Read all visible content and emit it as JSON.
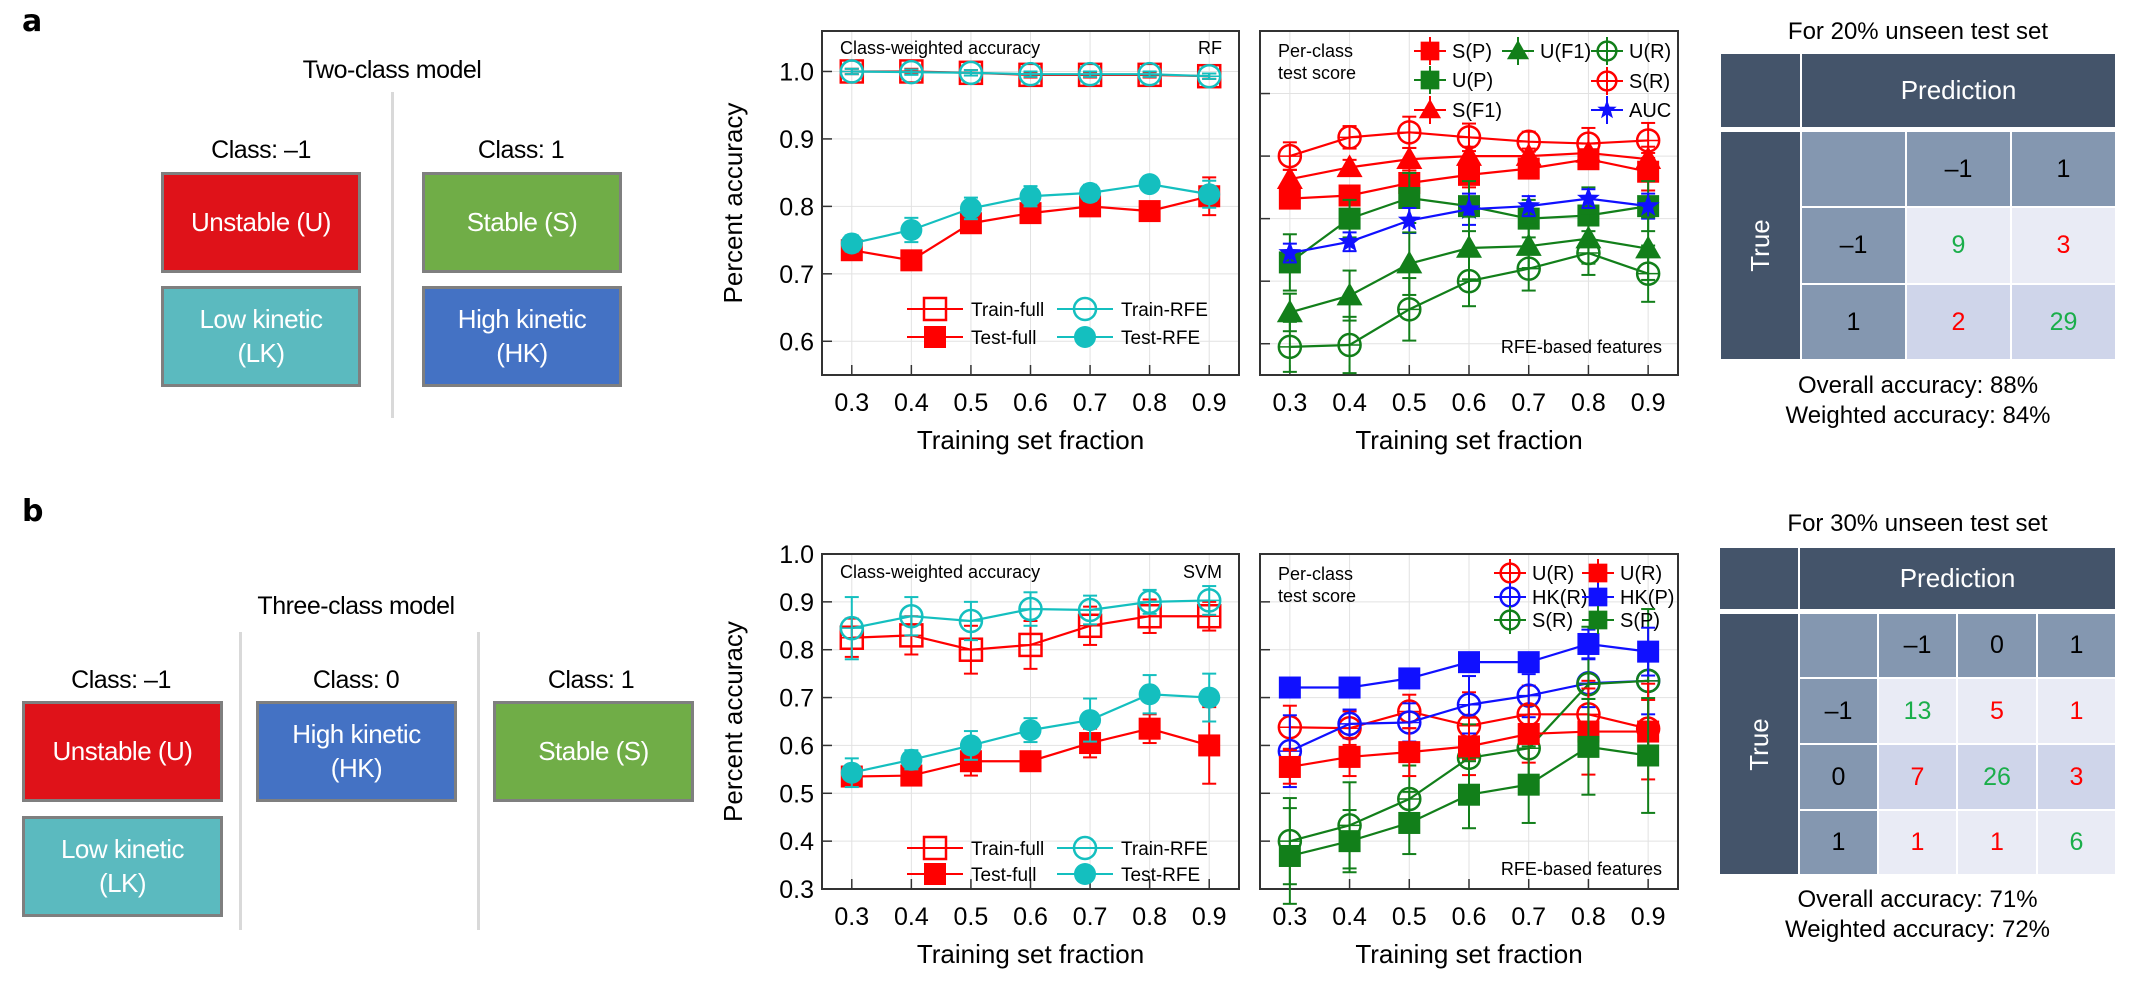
{
  "panel_a": {
    "letter": "a",
    "model_title": "Two-class model",
    "classes": [
      {
        "label": "Class: –1",
        "boxes": [
          {
            "text": "Unstable (U)",
            "color": "#df1219"
          },
          {
            "text": "Low kinetic (LK)",
            "color": "#5bbabf"
          }
        ]
      },
      {
        "label": "Class: 1",
        "boxes": [
          {
            "text": "Stable (S)",
            "color": "#70ad47"
          },
          {
            "text": "High kinetic (HK)",
            "color": "#4472c4"
          }
        ]
      }
    ],
    "confusion": {
      "title": "For 20% unseen test set",
      "prediction_label": "Prediction",
      "true_label": "True",
      "labels": [
        "–1",
        "1"
      ],
      "matrix": [
        [
          9,
          3
        ],
        [
          2,
          29
        ]
      ],
      "overall": "Overall accuracy: 88%",
      "weighted": "Weighted accuracy: 84%"
    }
  },
  "panel_b": {
    "letter": "b",
    "model_title": "Three-class model",
    "classes": [
      {
        "label": "Class: –1",
        "boxes": [
          {
            "text": "Unstable (U)",
            "color": "#df1219"
          },
          {
            "text": "Low kinetic (LK)",
            "color": "#5bbabf"
          }
        ]
      },
      {
        "label": "Class: 0",
        "boxes": [
          {
            "text": "High kinetic (HK)",
            "color": "#4472c4"
          }
        ]
      },
      {
        "label": "Class: 1",
        "boxes": [
          {
            "text": "Stable (S)",
            "color": "#70ad47"
          }
        ]
      }
    ],
    "confusion": {
      "title": "For 30% unseen test set",
      "prediction_label": "Prediction",
      "true_label": "True",
      "labels": [
        "–1",
        "0",
        "1"
      ],
      "matrix": [
        [
          13,
          5,
          1
        ],
        [
          7,
          26,
          3
        ],
        [
          1,
          1,
          6
        ]
      ],
      "overall": "Overall accuracy: 71%",
      "weighted": "Weighted accuracy: 72%"
    }
  },
  "colors": {
    "correct": "#1aae4a",
    "wrong": "#ff0000"
  },
  "chart_data": [
    {
      "type": "line",
      "annotation": "Class-weighted accuracy",
      "model": "RF",
      "xlabel": "Training set fraction",
      "ylabel": "Percent accuracy",
      "x": [
        0.3,
        0.4,
        0.5,
        0.6,
        0.7,
        0.8,
        0.9
      ],
      "xlim": [
        0.25,
        0.95
      ],
      "ylim": [
        0.55,
        1.06
      ],
      "yticks": [
        0.6,
        0.7,
        0.8,
        0.9,
        1.0
      ],
      "grid": true,
      "legend": "bottom",
      "series": [
        {
          "name": "Train-full",
          "marker": "open-square",
          "color": "#ff0000",
          "values": [
            1.0,
            1.0,
            0.998,
            0.995,
            0.995,
            0.995,
            0.993
          ],
          "err": [
            0.004,
            0.004,
            0.004,
            0.004,
            0.004,
            0.004,
            0.004
          ]
        },
        {
          "name": "Train-RFE",
          "marker": "open-circle",
          "color": "#14bfbf",
          "values": [
            1.0,
            0.999,
            0.998,
            0.996,
            0.996,
            0.996,
            0.993
          ],
          "err": [
            0.004,
            0.004,
            0.004,
            0.004,
            0.004,
            0.004,
            0.004
          ]
        },
        {
          "name": "Test-full",
          "marker": "filled-square",
          "color": "#ff0000",
          "values": [
            0.735,
            0.72,
            0.775,
            0.79,
            0.8,
            0.793,
            0.815
          ],
          "err": [
            0.012,
            0.01,
            0.012,
            0.01,
            0.01,
            0.01,
            0.028
          ]
        },
        {
          "name": "Test-RFE",
          "marker": "filled-circle",
          "color": "#14bfbf",
          "values": [
            0.745,
            0.765,
            0.797,
            0.815,
            0.82,
            0.833,
            0.818
          ],
          "err": [
            0.012,
            0.018,
            0.016,
            0.015,
            0.012,
            0.01,
            0.02
          ]
        }
      ]
    },
    {
      "type": "line",
      "annotation": "Per-class\ntest score",
      "note": "RFE-based features",
      "xlabel": "Training set fraction",
      "x": [
        0.3,
        0.4,
        0.5,
        0.6,
        0.7,
        0.8,
        0.9
      ],
      "xlim": [
        0.25,
        0.95
      ],
      "ylim": [
        0.55,
        1.1
      ],
      "yticks": [
        0.6,
        0.7,
        0.8,
        0.9,
        1.0
      ],
      "grid": true,
      "legend": "top",
      "series": [
        {
          "name": "S(R)",
          "marker": "open-circle",
          "color": "#ff0000",
          "values": [
            0.9,
            0.93,
            0.938,
            0.93,
            0.923,
            0.92,
            0.925
          ],
          "err": [
            0.022,
            0.018,
            0.025,
            0.022,
            0.016,
            0.025,
            0.028
          ]
        },
        {
          "name": "S(F1)",
          "marker": "filled-triangle",
          "color": "#ff0000",
          "values": [
            0.863,
            0.882,
            0.895,
            0.9,
            0.9,
            0.905,
            0.895
          ],
          "err": [
            0.015,
            0.012,
            0.018,
            0.015,
            0.012,
            0.015,
            0.02
          ]
        },
        {
          "name": "S(P)",
          "marker": "filled-square",
          "color": "#ff0000",
          "values": [
            0.832,
            0.837,
            0.857,
            0.87,
            0.88,
            0.895,
            0.875
          ],
          "err": [
            0.015,
            0.012,
            0.02,
            0.02,
            0.015,
            0.015,
            0.03
          ]
        },
        {
          "name": "U(P)",
          "marker": "filled-square",
          "color": "#127f1a",
          "values": [
            0.73,
            0.8,
            0.833,
            0.82,
            0.8,
            0.805,
            0.82
          ],
          "err": [
            0.045,
            0.03,
            0.04,
            0.04,
            0.03,
            0.045,
            0.04
          ]
        },
        {
          "name": "AUC",
          "marker": "star",
          "color": "#1010ff",
          "values": [
            0.745,
            0.763,
            0.797,
            0.815,
            0.82,
            0.832,
            0.82
          ],
          "err": [
            0.015,
            0.015,
            0.02,
            0.025,
            0.016,
            0.015,
            0.02
          ]
        },
        {
          "name": "U(F1)",
          "marker": "filled-triangle",
          "color": "#127f1a",
          "values": [
            0.65,
            0.677,
            0.728,
            0.753,
            0.756,
            0.768,
            0.752
          ],
          "err": [
            0.03,
            0.04,
            0.05,
            0.05,
            0.035,
            0.04,
            0.05
          ]
        },
        {
          "name": "U(R)",
          "marker": "open-circle",
          "color": "#127f1a",
          "values": [
            0.595,
            0.598,
            0.655,
            0.7,
            0.72,
            0.745,
            0.712
          ],
          "err": [
            0.04,
            0.045,
            0.05,
            0.04,
            0.035,
            0.035,
            0.045
          ]
        }
      ]
    },
    {
      "type": "line",
      "annotation": "Class-weighted accuracy",
      "model": "SVM",
      "xlabel": "Training set fraction",
      "ylabel": "Percent accuracy",
      "x": [
        0.3,
        0.4,
        0.5,
        0.6,
        0.7,
        0.8,
        0.9
      ],
      "xlim": [
        0.25,
        0.95
      ],
      "ylim": [
        0.3,
        1.0
      ],
      "yticks": [
        0.3,
        0.4,
        0.5,
        0.6,
        0.7,
        0.8,
        0.9,
        1.0
      ],
      "grid": true,
      "legend": "bottom",
      "series": [
        {
          "name": "Train-full",
          "marker": "open-square",
          "color": "#ff0000",
          "values": [
            0.825,
            0.83,
            0.8,
            0.81,
            0.85,
            0.87,
            0.87
          ],
          "err": [
            0.04,
            0.04,
            0.05,
            0.05,
            0.04,
            0.035,
            0.03
          ]
        },
        {
          "name": "Train-RFE",
          "marker": "open-circle",
          "color": "#14bfbf",
          "values": [
            0.845,
            0.87,
            0.86,
            0.885,
            0.883,
            0.9,
            0.903
          ],
          "err": [
            0.065,
            0.04,
            0.04,
            0.035,
            0.03,
            0.025,
            0.03
          ]
        },
        {
          "name": "Test-full",
          "marker": "filled-square",
          "color": "#ff0000",
          "values": [
            0.535,
            0.537,
            0.567,
            0.567,
            0.605,
            0.635,
            0.6
          ],
          "err": [
            0.02,
            0.02,
            0.03,
            0.02,
            0.03,
            0.03,
            0.08
          ]
        },
        {
          "name": "Test-RFE",
          "marker": "filled-circle",
          "color": "#14bfbf",
          "values": [
            0.543,
            0.57,
            0.6,
            0.632,
            0.653,
            0.707,
            0.7
          ],
          "err": [
            0.03,
            0.02,
            0.03,
            0.025,
            0.045,
            0.04,
            0.05
          ]
        }
      ]
    },
    {
      "type": "line",
      "annotation": "Per-class\ntest score",
      "note": "RFE-based features",
      "xlabel": "Training set fraction",
      "x": [
        0.3,
        0.4,
        0.5,
        0.6,
        0.7,
        0.8,
        0.9
      ],
      "xlim": [
        0.25,
        0.95
      ],
      "ylim": [
        0.3,
        1.0
      ],
      "yticks": [
        0.3,
        0.4,
        0.5,
        0.6,
        0.7,
        0.8,
        0.9,
        1.0
      ],
      "grid": true,
      "legend": "top-right",
      "series": [
        {
          "name": "U(R)",
          "marker": "open-circle",
          "color": "#ff0000",
          "values": [
            0.638,
            0.636,
            0.671,
            0.641,
            0.665,
            0.665,
            0.635
          ],
          "err": [
            0.045,
            0.035,
            0.035,
            0.07,
            0.06,
            0.07,
            0.06
          ]
        },
        {
          "name": "HK(R)",
          "marker": "open-circle",
          "color": "#1010ff",
          "values": [
            0.588,
            0.645,
            0.648,
            0.685,
            0.704,
            0.73,
            0.735
          ],
          "err": [
            0.075,
            0.03,
            0.04,
            0.06,
            0.045,
            0.05,
            0.07
          ]
        },
        {
          "name": "S(R)",
          "marker": "open-circle",
          "color": "#127f1a",
          "values": [
            0.4,
            0.433,
            0.488,
            0.574,
            0.594,
            0.728,
            0.735
          ],
          "err": [
            0.09,
            0.09,
            0.07,
            0.07,
            0.09,
            0.12,
            0.15
          ]
        },
        {
          "name": "U(R)",
          "marker": "filled-square",
          "color": "#ff0000",
          "values": [
            0.555,
            0.576,
            0.586,
            0.598,
            0.624,
            0.629,
            0.629
          ],
          "err": [
            0.035,
            0.04,
            0.05,
            0.06,
            0.06,
            0.09,
            0.1
          ]
        },
        {
          "name": "HK(P)",
          "marker": "filled-square",
          "color": "#1010ff",
          "values": [
            0.721,
            0.721,
            0.74,
            0.774,
            0.774,
            0.812,
            0.796
          ],
          "err": [
            0.01,
            0.01,
            0.02,
            0.02,
            0.02,
            0.03,
            0.05
          ]
        },
        {
          "name": "S(P)",
          "marker": "filled-square",
          "color": "#127f1a",
          "values": [
            0.369,
            0.4,
            0.438,
            0.497,
            0.518,
            0.597,
            0.579
          ],
          "err": [
            0.1,
            0.065,
            0.065,
            0.07,
            0.08,
            0.1,
            0.12
          ]
        }
      ]
    }
  ]
}
